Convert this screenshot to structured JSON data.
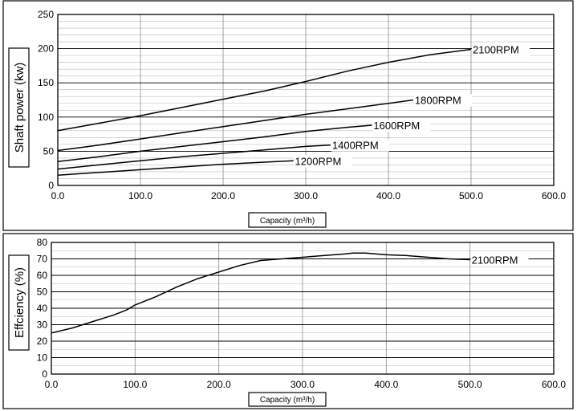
{
  "chart_data": [
    {
      "type": "line",
      "title": "",
      "xlabel": "Capacity (m³/h)",
      "ylabel": "Shaft power (kw)",
      "xlim": [
        0,
        600
      ],
      "ylim": [
        0,
        250
      ],
      "xticks": [
        0,
        100,
        200,
        300,
        400,
        500,
        600
      ],
      "xtick_labels": [
        "0.0",
        "100.0",
        "200.0",
        "300.0",
        "400.0",
        "500.0",
        "600.0"
      ],
      "yticks": [
        0,
        50,
        100,
        150,
        200,
        250
      ],
      "ytick_labels": [
        "0",
        "50",
        "100",
        "150",
        "200",
        "250"
      ],
      "grid": true,
      "legend": "none",
      "series": [
        {
          "name": "2100RPM",
          "x": [
            0,
            50,
            100,
            150,
            200,
            250,
            300,
            350,
            400,
            450,
            500
          ],
          "y": [
            80,
            91,
            102,
            114,
            126,
            138,
            152,
            167,
            180,
            191,
            199
          ]
        },
        {
          "name": "1800RPM",
          "x": [
            0,
            50,
            100,
            150,
            200,
            250,
            300,
            350,
            400,
            430
          ],
          "y": [
            51,
            59,
            68,
            77,
            86,
            95,
            104,
            112,
            120,
            125
          ]
        },
        {
          "name": "1600RPM",
          "x": [
            0,
            50,
            100,
            150,
            200,
            250,
            300,
            350,
            380
          ],
          "y": [
            35,
            42,
            50,
            57,
            64,
            71,
            79,
            85,
            88
          ]
        },
        {
          "name": "1400RPM",
          "x": [
            0,
            50,
            100,
            150,
            200,
            250,
            300,
            330
          ],
          "y": [
            24,
            30,
            36,
            42,
            47,
            52,
            57,
            59
          ]
        },
        {
          "name": "1200RPM",
          "x": [
            0,
            50,
            100,
            150,
            200,
            250,
            285
          ],
          "y": [
            15,
            19,
            23,
            27,
            31,
            34,
            36
          ]
        }
      ]
    },
    {
      "type": "line",
      "title": "",
      "xlabel": "Capacity (m³/h)",
      "ylabel": "Effciency (%)",
      "xlim": [
        0,
        600
      ],
      "ylim": [
        0,
        80
      ],
      "xticks": [
        0,
        100,
        200,
        300,
        400,
        500,
        600
      ],
      "xtick_labels": [
        "0.0",
        "100.0",
        "200.0",
        "300.0",
        "400.0",
        "500.0",
        "600.0"
      ],
      "yticks": [
        0,
        10,
        20,
        30,
        40,
        50,
        60,
        70,
        80
      ],
      "ytick_labels": [
        "0",
        "10",
        "20",
        "30",
        "40",
        "50",
        "60",
        "70",
        "80"
      ],
      "grid": true,
      "legend": "none",
      "series": [
        {
          "name": "2100RPM",
          "x": [
            0,
            25,
            50,
            75,
            90,
            100,
            125,
            150,
            175,
            200,
            225,
            250,
            275,
            300,
            325,
            350,
            360,
            375,
            400,
            425,
            450,
            475,
            500
          ],
          "y": [
            25,
            28,
            32,
            36,
            39,
            42,
            47,
            53,
            58,
            62,
            66,
            69,
            70,
            71,
            72,
            73,
            73.5,
            73.5,
            72.5,
            72,
            71,
            70,
            69.5
          ]
        }
      ]
    }
  ]
}
